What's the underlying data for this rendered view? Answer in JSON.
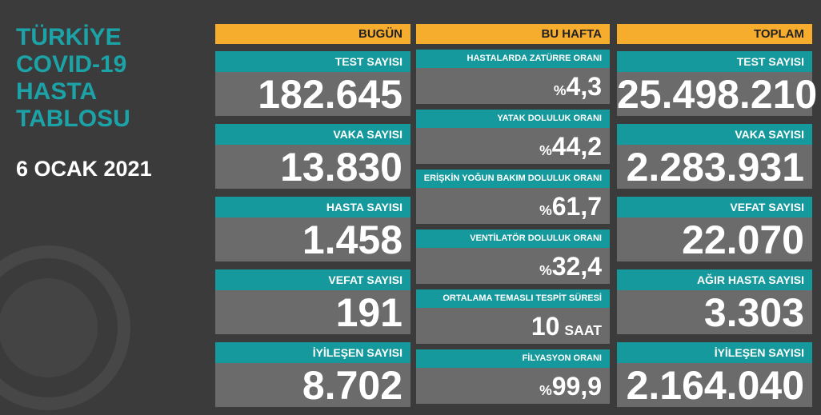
{
  "title_lines": [
    "TÜRKİYE",
    "COVID-19",
    "HASTA",
    "TABLOSU"
  ],
  "date": "6 OCAK 2021",
  "columns": [
    {
      "header": "BUGÜN",
      "cards": [
        {
          "label": "TEST SAYISI",
          "value": "182.645"
        },
        {
          "label": "VAKA SAYISI",
          "value": "13.830"
        },
        {
          "label": "HASTA SAYISI",
          "value": "1.458"
        },
        {
          "label": "VEFAT SAYISI",
          "value": "191"
        },
        {
          "label": "İYİLEŞEN SAYISI",
          "value": "8.702"
        }
      ]
    },
    {
      "header": "BU HAFTA",
      "cards": [
        {
          "label": "HASTALARDA ZATÜRRE ORANI",
          "prefix": "%",
          "value": "4,3"
        },
        {
          "label": "YATAK DOLULUK ORANI",
          "prefix": "%",
          "value": "44,2"
        },
        {
          "label": "ERİŞKİN YOĞUN BAKIM DOLULUK ORANI",
          "prefix": "%",
          "value": "61,7"
        },
        {
          "label": "VENTİLATÖR DOLULUK ORANI",
          "prefix": "%",
          "value": "32,4"
        },
        {
          "label": "ORTALAMA TEMASLI TESPİT SÜRESİ",
          "value": "10",
          "unit": "SAAT"
        },
        {
          "label": "FİLYASYON ORANI",
          "prefix": "%",
          "value": "99,9"
        }
      ]
    },
    {
      "header": "TOPLAM",
      "cards": [
        {
          "label": "TEST SAYISI",
          "value": "25.498.210"
        },
        {
          "label": "VAKA SAYISI",
          "value": "2.283.931"
        },
        {
          "label": "VEFAT SAYISI",
          "value": "22.070"
        },
        {
          "label": "AĞIR HASTA SAYISI",
          "value": "3.303"
        },
        {
          "label": "İYİLEŞEN SAYISI",
          "value": "2.164.040"
        }
      ]
    }
  ]
}
